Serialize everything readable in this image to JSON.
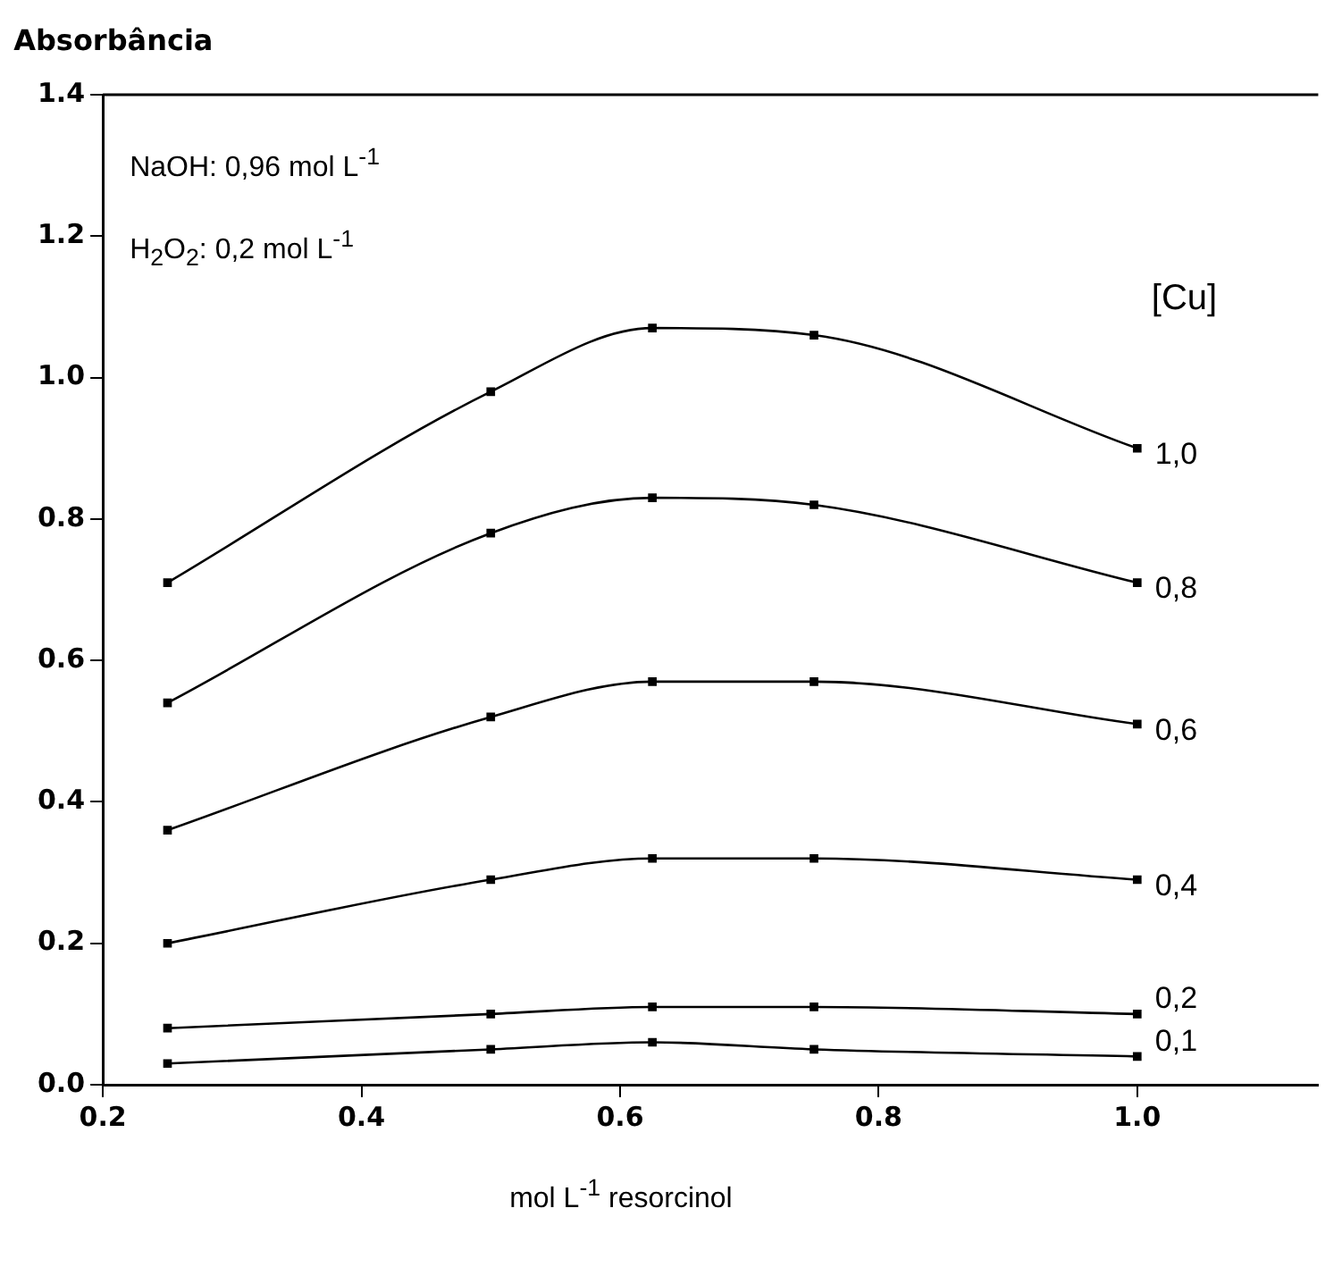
{
  "chart_data": {
    "type": "line",
    "ylabel": "Absorbância",
    "xlabel": "mol L$^{-1}$ resorcinol",
    "legend_title": "[Cu]",
    "annotations": [
      "NaOH: 0,96 mol L$^{-1}$",
      "H$_{2}$O$_{2}$: 0,2 mol L$^{-1}$"
    ],
    "x": [
      0.25,
      0.5,
      0.625,
      0.75,
      1.0
    ],
    "series": [
      {
        "name": "1,0",
        "color": "#000000",
        "values": [
          0.71,
          0.98,
          1.07,
          1.06,
          0.9
        ]
      },
      {
        "name": "0,8",
        "color": "#000000",
        "values": [
          0.54,
          0.78,
          0.83,
          0.82,
          0.71
        ]
      },
      {
        "name": "0,6",
        "color": "#000000",
        "values": [
          0.36,
          0.52,
          0.57,
          0.57,
          0.51
        ]
      },
      {
        "name": "0,4",
        "color": "#000000",
        "values": [
          0.2,
          0.29,
          0.32,
          0.32,
          0.29
        ]
      },
      {
        "name": "0,2",
        "color": "#000000",
        "values": [
          0.08,
          0.1,
          0.11,
          0.11,
          0.1
        ]
      },
      {
        "name": "0,1",
        "color": "#000000",
        "values": [
          0.03,
          0.05,
          0.06,
          0.05,
          0.04
        ]
      }
    ],
    "xlim": [
      0.2,
      1.14
    ],
    "xticks": [
      {
        "value": 0.2,
        "label": "0.2"
      },
      {
        "value": 0.4,
        "label": "0.4"
      },
      {
        "value": 0.6,
        "label": "0.6"
      },
      {
        "value": 0.8,
        "label": "0.8"
      },
      {
        "value": 1.0,
        "label": "1.0"
      }
    ],
    "ylim": [
      0,
      1.4
    ],
    "yticks": [
      {
        "value": 0,
        "label": "0.0"
      },
      {
        "value": 0.2,
        "label": "0.2"
      },
      {
        "value": 0.4,
        "label": "0.4"
      },
      {
        "value": 0.6,
        "label": "0.6"
      },
      {
        "value": 0.8,
        "label": "0.8"
      },
      {
        "value": 1.0,
        "label": "1.0"
      },
      {
        "value": 1.2,
        "label": "1.2"
      },
      {
        "value": 1.4,
        "label": "1.4"
      }
    ],
    "grid": false,
    "marker": "square",
    "line_style": "solid"
  }
}
